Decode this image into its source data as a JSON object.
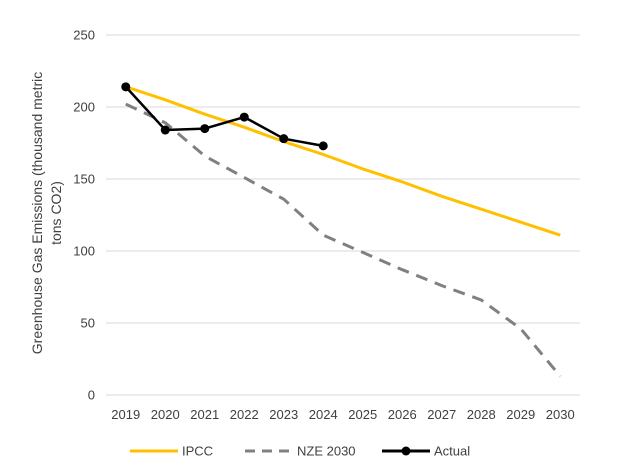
{
  "chart_data": {
    "type": "line",
    "title": "",
    "xlabel": "",
    "ylabel_lines": [
      "Greenhouse Gas Emissions (thousand metric",
      "tons CO2)"
    ],
    "ylim": [
      0,
      250
    ],
    "yticks": [
      0,
      50,
      100,
      150,
      200,
      250
    ],
    "categories": [
      "2019",
      "2020",
      "2021",
      "2022",
      "2023",
      "2024",
      "2025",
      "2026",
      "2027",
      "2028",
      "2029",
      "2030"
    ],
    "grid": "horizontal",
    "legend_position": "bottom",
    "series": [
      {
        "name": "IPCC",
        "color": "#FFC000",
        "style": "solid",
        "markers": false,
        "values": [
          214,
          205,
          195,
          186,
          176,
          167,
          157,
          148,
          138,
          129,
          120,
          111
        ]
      },
      {
        "name": "NZE 2030",
        "color": "#808080",
        "style": "dashed",
        "markers": false,
        "values": [
          202,
          189,
          166,
          151,
          136,
          111,
          99,
          87,
          76,
          66,
          46,
          13
        ]
      },
      {
        "name": "Actual",
        "color": "#000000",
        "style": "solid",
        "markers": true,
        "values": [
          214,
          184,
          185,
          193,
          178,
          173,
          null,
          null,
          null,
          null,
          null,
          null
        ]
      }
    ]
  }
}
